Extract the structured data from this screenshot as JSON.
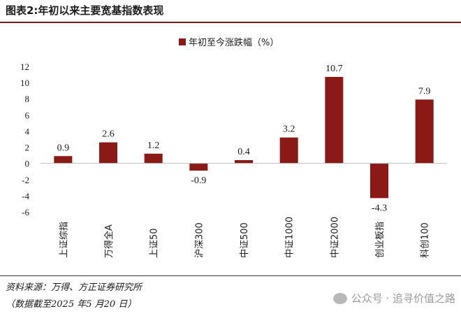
{
  "header": {
    "title": "图表2:年初以来主要宽基指数表现"
  },
  "footer": {
    "source": "资料来源：万得、方正证券研究所",
    "date": "（数据截至2025 年5 月20 日）",
    "watermark": "公众号 · 追寻价值之路"
  },
  "colors": {
    "bar": "#8b1a16",
    "accent": "#7a1a16"
  },
  "chart_data": {
    "type": "bar",
    "title": "",
    "xlabel": "",
    "ylabel": "",
    "categories": [
      "上证综指",
      "万得全A",
      "上证50",
      "沪深300",
      "中证500",
      "中证1000",
      "中证2000",
      "创业板指",
      "科创100"
    ],
    "series": [
      {
        "name": "年初至今涨跌幅（%）",
        "values": [
          0.9,
          2.6,
          1.2,
          -0.9,
          0.4,
          3.2,
          10.7,
          -4.3,
          7.9
        ]
      }
    ],
    "data_labels": [
      "0.9",
      "2.6",
      "1.2",
      "-0.9",
      "0.4",
      "3.2",
      "10.7",
      "-4.3",
      "7.9"
    ],
    "yticks": [
      12,
      10,
      8,
      6,
      4,
      2,
      0,
      -2,
      -4,
      -6
    ],
    "ylim": [
      -6,
      12
    ],
    "grid": false,
    "legend_position": "top-center"
  }
}
